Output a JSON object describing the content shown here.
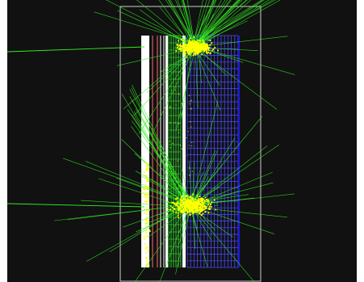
{
  "viewer": {
    "background": "#111111",
    "page_background": "#ffffff"
  },
  "detector": {
    "frame_color": "#cfcfcf",
    "layers": [
      {
        "kind": "absorber-plate",
        "color": "#ffffff"
      },
      {
        "kind": "readout-gap",
        "color": "#1a0a0a"
      },
      {
        "kind": "preshower-module",
        "color": "#ff6a6a"
      },
      {
        "kind": "readout-gap",
        "color": "#1a1a1a"
      },
      {
        "kind": "tracker-module",
        "color": "#ffffff"
      },
      {
        "kind": "em-calorimeter",
        "color": "#3aff3a"
      },
      {
        "kind": "absorber-plate",
        "color": "#ffffff"
      },
      {
        "kind": "hadron-calorimeter",
        "color": "#4a4aff"
      },
      {
        "kind": "outer-frame",
        "color": "#1a1ae0"
      }
    ]
  },
  "tracks": {
    "track_color": "#33ee22",
    "hit_color": "#ffff00",
    "incoming_beams": 2,
    "showers": [
      {
        "name": "upper-shower"
      },
      {
        "name": "lower-shower"
      }
    ]
  }
}
